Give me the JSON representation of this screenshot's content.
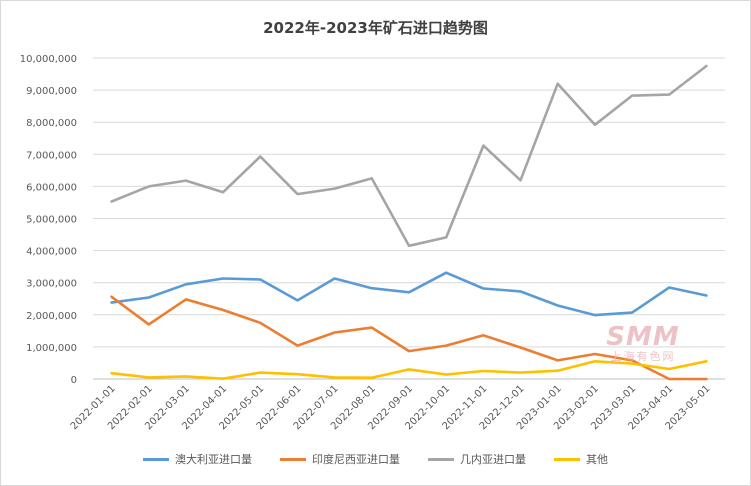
{
  "chart_data": {
    "type": "line",
    "title": "2022年-2023年矿石进口趋势图",
    "xlabel": "",
    "ylabel": "",
    "ylim": [
      0,
      10000000
    ],
    "yticks": [
      "0",
      "1,000,000",
      "2,000,000",
      "3,000,000",
      "4,000,000",
      "5,000,000",
      "6,000,000",
      "7,000,000",
      "8,000,000",
      "9,000,000",
      "10,000,000"
    ],
    "categories": [
      "2022-01-01",
      "2022-02-01",
      "2022-03-01",
      "2022-04-01",
      "2022-05-01",
      "2022-06-01",
      "2022-07-01",
      "2022-08-01",
      "2022-09-01",
      "2022-10-01",
      "2022-11-01",
      "2022-12-01",
      "2023-01-01",
      "2023-02-01",
      "2023-03-01",
      "2023-04-01",
      "2023-05-01"
    ],
    "grid": true,
    "legend_position": "bottom",
    "series": [
      {
        "name": "澳大利亚进口量",
        "color": "#5b9bd5",
        "values": [
          2380000,
          2540000,
          2950000,
          3130000,
          3100000,
          2450000,
          3130000,
          2830000,
          2700000,
          3310000,
          2820000,
          2730000,
          2290000,
          1990000,
          2070000,
          2850000,
          2600000
        ]
      },
      {
        "name": "印度尼西亚进口量",
        "color": "#ed7d31",
        "values": [
          2560000,
          1700000,
          2480000,
          2150000,
          1750000,
          1040000,
          1450000,
          1600000,
          870000,
          1040000,
          1360000,
          980000,
          580000,
          780000,
          580000,
          0,
          0
        ]
      },
      {
        "name": "几内亚进口量",
        "color": "#a5a5a5",
        "values": [
          5530000,
          6000000,
          6180000,
          5820000,
          6930000,
          5760000,
          5930000,
          6250000,
          4150000,
          4410000,
          7270000,
          6190000,
          9200000,
          7920000,
          8830000,
          8860000,
          9750000
        ]
      },
      {
        "name": "其他",
        "color": "#ffc000",
        "values": [
          180000,
          50000,
          80000,
          10000,
          200000,
          150000,
          50000,
          40000,
          300000,
          140000,
          250000,
          200000,
          260000,
          550000,
          480000,
          310000,
          550000
        ]
      }
    ]
  },
  "watermark": {
    "logo": "SMM",
    "text": "上海有色网"
  }
}
